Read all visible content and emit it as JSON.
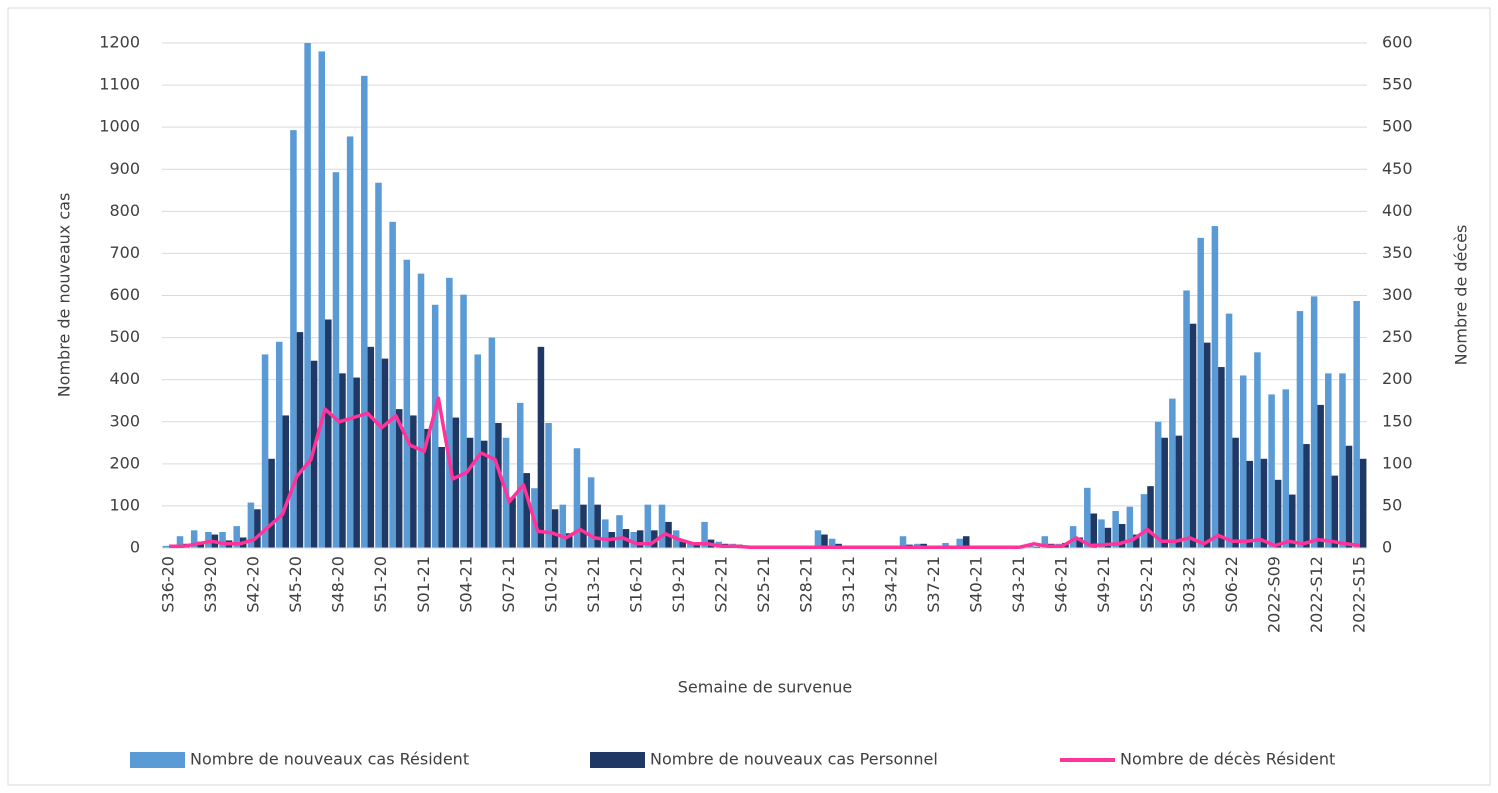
{
  "chart_data": {
    "type": "bar-line",
    "x_label": "Semaine de survenue",
    "y_label": "Nombre de nouveaux cas",
    "y2_label": "Nombre de décès",
    "categories": [
      "S36-20",
      null,
      null,
      "S39-20",
      null,
      null,
      "S42-20",
      null,
      null,
      "S45-20",
      null,
      null,
      "S48-20",
      null,
      null,
      "S51-20",
      null,
      null,
      "S01-21",
      null,
      null,
      "S04-21",
      null,
      null,
      "S07-21",
      null,
      null,
      "S10-21",
      null,
      null,
      "S13-21",
      null,
      null,
      "S16-21",
      null,
      null,
      "S19-21",
      null,
      null,
      "S22-21",
      null,
      null,
      "S25-21",
      null,
      null,
      "S28-21",
      null,
      null,
      "S31-21",
      null,
      null,
      "S34-21",
      null,
      null,
      "S37-21",
      null,
      null,
      "S40-21",
      null,
      null,
      "S43-21",
      null,
      null,
      "S46-21",
      null,
      null,
      "S49-21",
      null,
      null,
      "S52-21",
      null,
      null,
      "S03-22",
      null,
      null,
      "S06-22",
      null,
      null,
      "2022-S09",
      null,
      null,
      "2022-S12",
      null,
      null,
      "2022-S15"
    ],
    "series": [
      {
        "name": "Nombre de nouveaux cas Résident",
        "color": "#5b9bd5",
        "type": "bar",
        "values": [
          5,
          28,
          42,
          38,
          38,
          52,
          108,
          460,
          490,
          993,
          1200,
          1180,
          893,
          978,
          1122,
          868,
          775,
          685,
          652,
          578,
          642,
          602,
          460,
          500,
          262,
          345,
          142,
          297,
          103,
          237,
          168,
          68,
          78,
          38,
          103,
          103,
          42,
          10,
          62,
          15,
          10,
          5,
          3,
          2,
          2,
          3,
          42,
          22,
          5,
          3,
          2,
          2,
          28,
          10,
          3,
          12,
          22,
          3,
          2,
          2,
          3,
          5,
          28,
          10,
          52,
          143,
          68,
          88,
          98,
          128,
          300,
          355,
          612,
          737,
          765,
          557,
          410,
          465,
          365,
          377,
          563,
          598,
          415,
          415,
          587
        ]
      },
      {
        "name": "Nombre de nouveaux cas Personnel",
        "color": "#203864",
        "type": "bar",
        "values": [
          3,
          10,
          15,
          32,
          18,
          25,
          92,
          212,
          315,
          513,
          445,
          543,
          415,
          405,
          478,
          450,
          330,
          315,
          283,
          240,
          310,
          262,
          255,
          297,
          120,
          178,
          478,
          92,
          35,
          103,
          103,
          38,
          45,
          42,
          42,
          62,
          15,
          8,
          20,
          10,
          8,
          3,
          2,
          1,
          1,
          2,
          32,
          10,
          3,
          2,
          1,
          1,
          8,
          10,
          2,
          5,
          28,
          2,
          1,
          1,
          2,
          3,
          10,
          12,
          25,
          82,
          48,
          57,
          32,
          147,
          262,
          267,
          533,
          488,
          430,
          262,
          207,
          212,
          162,
          127,
          247,
          340,
          172,
          243,
          212
        ]
      },
      {
        "name": "Nombre de décès Résident",
        "color": "#ff3399",
        "type": "line",
        "axis": "y2",
        "values": [
          2,
          2,
          5,
          8,
          5,
          5,
          10,
          25,
          40,
          85,
          105,
          165,
          150,
          155,
          160,
          143,
          157,
          122,
          115,
          178,
          82,
          90,
          113,
          105,
          55,
          75,
          20,
          18,
          12,
          22,
          12,
          10,
          12,
          5,
          5,
          17,
          10,
          5,
          5,
          2,
          2,
          1,
          1,
          1,
          1,
          1,
          1,
          1,
          1,
          1,
          1,
          1,
          1,
          1,
          1,
          1,
          1,
          1,
          1,
          1,
          1,
          5,
          2,
          2,
          12,
          3,
          4,
          5,
          10,
          22,
          8,
          8,
          12,
          5,
          15,
          8,
          8,
          10,
          3,
          8,
          5,
          10,
          8,
          5,
          3
        ]
      }
    ],
    "ylim": [
      0,
      1200
    ],
    "yticks": [
      0,
      100,
      200,
      300,
      400,
      500,
      600,
      700,
      800,
      900,
      1000,
      1100,
      1200
    ],
    "y2lim": [
      0,
      600
    ],
    "y2ticks": [
      0,
      50,
      100,
      150,
      200,
      250,
      300,
      350,
      400,
      450,
      500,
      550,
      600
    ],
    "grid": true,
    "legend": "bottom"
  }
}
